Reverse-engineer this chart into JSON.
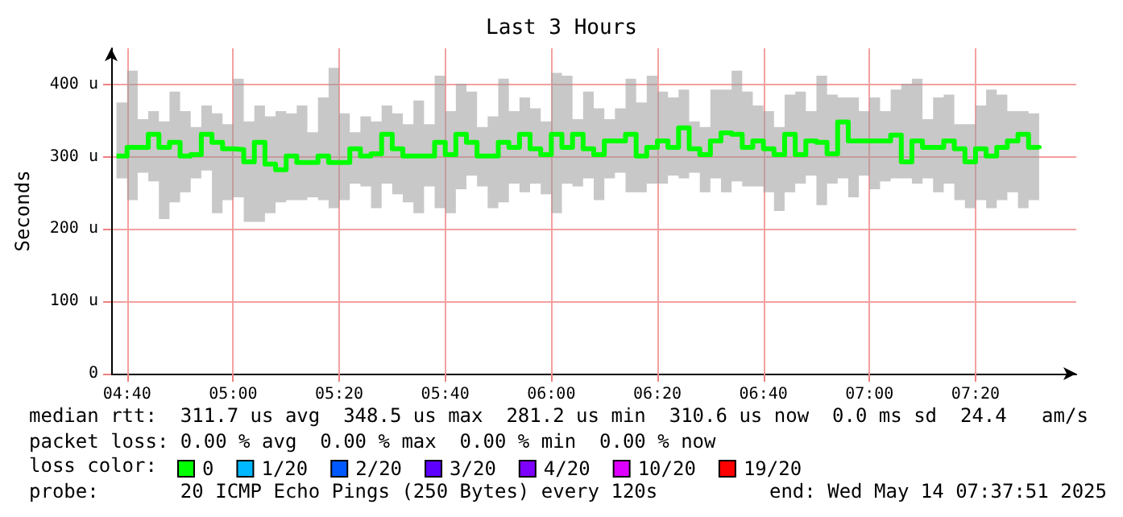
{
  "chart_data": {
    "type": "step",
    "title": "Last 3 Hours",
    "ylabel": "Seconds",
    "legend_title": "loss color:",
    "x": [
      "2025-05-14T04:38",
      "2025-05-14T04:40",
      "2025-05-14T04:42",
      "2025-05-14T04:44",
      "2025-05-14T04:46",
      "2025-05-14T04:48",
      "2025-05-14T04:50",
      "2025-05-14T04:52",
      "2025-05-14T04:54",
      "2025-05-14T04:56",
      "2025-05-14T04:58",
      "2025-05-14T05:00",
      "2025-05-14T05:02",
      "2025-05-14T05:04",
      "2025-05-14T05:06",
      "2025-05-14T05:08",
      "2025-05-14T05:10",
      "2025-05-14T05:12",
      "2025-05-14T05:14",
      "2025-05-14T05:16",
      "2025-05-14T05:18",
      "2025-05-14T05:20",
      "2025-05-14T05:22",
      "2025-05-14T05:24",
      "2025-05-14T05:26",
      "2025-05-14T05:28",
      "2025-05-14T05:30",
      "2025-05-14T05:32",
      "2025-05-14T05:34",
      "2025-05-14T05:36",
      "2025-05-14T05:38",
      "2025-05-14T05:40",
      "2025-05-14T05:42",
      "2025-05-14T05:44",
      "2025-05-14T05:46",
      "2025-05-14T05:48",
      "2025-05-14T05:50",
      "2025-05-14T05:52",
      "2025-05-14T05:54",
      "2025-05-14T05:56",
      "2025-05-14T05:58",
      "2025-05-14T06:00",
      "2025-05-14T06:02",
      "2025-05-14T06:04",
      "2025-05-14T06:06",
      "2025-05-14T06:08",
      "2025-05-14T06:10",
      "2025-05-14T06:12",
      "2025-05-14T06:14",
      "2025-05-14T06:16",
      "2025-05-14T06:18",
      "2025-05-14T06:20",
      "2025-05-14T06:22",
      "2025-05-14T06:24",
      "2025-05-14T06:26",
      "2025-05-14T06:28",
      "2025-05-14T06:30",
      "2025-05-14T06:32",
      "2025-05-14T06:34",
      "2025-05-14T06:36",
      "2025-05-14T06:38",
      "2025-05-14T06:40",
      "2025-05-14T06:42",
      "2025-05-14T06:44",
      "2025-05-14T06:46",
      "2025-05-14T06:48",
      "2025-05-14T06:50",
      "2025-05-14T06:52",
      "2025-05-14T06:54",
      "2025-05-14T06:56",
      "2025-05-14T06:58",
      "2025-05-14T07:00",
      "2025-05-14T07:02",
      "2025-05-14T07:04",
      "2025-05-14T07:06",
      "2025-05-14T07:08",
      "2025-05-14T07:10",
      "2025-05-14T07:12",
      "2025-05-14T07:14",
      "2025-05-14T07:16",
      "2025-05-14T07:18",
      "2025-05-14T07:20",
      "2025-05-14T07:22",
      "2025-05-14T07:24",
      "2025-05-14T07:26",
      "2025-05-14T07:28",
      "2025-05-14T07:30",
      "2025-05-14T07:32"
    ],
    "series": [
      {
        "name": "0",
        "color": "#00ff00",
        "values": [
          301,
          313,
          313,
          331,
          313,
          320,
          301,
          303,
          331,
          320,
          311,
          310,
          293,
          320,
          290,
          282,
          301,
          292,
          292,
          301,
          292,
          292,
          311,
          301,
          304,
          331,
          311,
          301,
          301,
          301,
          320,
          303,
          331,
          320,
          301,
          301,
          320,
          313,
          331,
          311,
          303,
          331,
          313,
          331,
          311,
          303,
          322,
          322,
          331,
          301,
          313,
          322,
          313,
          340,
          311,
          303,
          322,
          333,
          331,
          313,
          322,
          311,
          303,
          331,
          303,
          322,
          320,
          304,
          348,
          322,
          322,
          322,
          322,
          330,
          293,
          322,
          313,
          313,
          322,
          311,
          293,
          311,
          301,
          313,
          322,
          331,
          313,
          311
        ],
        "upper": [
          375,
          419,
          352,
          363,
          349,
          390,
          363,
          341,
          371,
          360,
          345,
          408,
          349,
          371,
          356,
          363,
          360,
          371,
          334,
          382,
          423,
          360,
          334,
          356,
          349,
          371,
          360,
          345,
          378,
          345,
          412,
          363,
          401,
          390,
          341,
          356,
          408,
          363,
          382,
          367,
          349,
          416,
          412,
          352,
          390,
          367,
          352,
          367,
          408,
          375,
          412,
          390,
          382,
          393,
          349,
          341,
          393,
          393,
          419,
          390,
          371,
          363,
          341,
          386,
          390,
          363,
          412,
          386,
          382,
          382,
          363,
          382,
          363,
          393,
          401,
          408,
          352,
          382,
          386,
          345,
          345,
          371,
          393,
          386,
          363,
          363,
          360,
          363
        ],
        "lower": [
          270,
          240,
          278,
          266,
          214,
          237,
          251,
          270,
          281,
          222,
          240,
          244,
          210,
          210,
          222,
          237,
          240,
          240,
          244,
          240,
          229,
          240,
          263,
          259,
          229,
          263,
          248,
          237,
          222,
          259,
          229,
          222,
          255,
          274,
          259,
          229,
          237,
          263,
          251,
          263,
          248,
          222,
          263,
          259,
          270,
          240,
          270,
          278,
          251,
          251,
          263,
          263,
          274,
          270,
          278,
          251,
          270,
          251,
          266,
          259,
          259,
          251,
          225,
          251,
          263,
          274,
          233,
          263,
          270,
          244,
          274,
          255,
          266,
          270,
          270,
          263,
          270,
          251,
          263,
          240,
          229,
          240,
          229,
          240,
          251,
          229,
          240,
          266
        ]
      },
      {
        "name": "1/20",
        "color": "#00b8ff",
        "values": [
          null,
          null,
          null,
          null,
          null,
          null,
          null,
          null,
          null,
          null,
          null,
          null,
          null,
          null,
          null,
          null,
          null,
          null,
          null,
          null,
          null,
          null,
          null,
          null,
          null,
          null,
          null,
          null,
          null,
          null,
          null,
          null,
          null,
          null,
          null,
          null,
          null,
          null,
          null,
          null,
          null,
          null,
          null,
          null,
          null,
          null,
          null,
          null,
          null,
          null,
          null,
          null,
          null,
          null,
          null,
          null,
          null,
          null,
          null,
          null,
          null,
          null,
          null,
          null,
          null,
          null,
          null,
          null,
          null,
          null,
          null,
          null,
          null,
          null,
          null,
          null,
          null,
          null,
          null,
          null,
          null,
          null,
          null,
          null,
          null,
          null,
          null,
          null
        ]
      },
      {
        "name": "2/20",
        "color": "#0059ff",
        "values": [
          null,
          null,
          null,
          null,
          null,
          null,
          null,
          null,
          null,
          null,
          null,
          null,
          null,
          null,
          null,
          null,
          null,
          null,
          null,
          null,
          null,
          null,
          null,
          null,
          null,
          null,
          null,
          null,
          null,
          null,
          null,
          null,
          null,
          null,
          null,
          null,
          null,
          null,
          null,
          null,
          null,
          null,
          null,
          null,
          null,
          null,
          null,
          null,
          null,
          null,
          null,
          null,
          null,
          null,
          null,
          null,
          null,
          null,
          null,
          null,
          null,
          null,
          null,
          null,
          null,
          null,
          null,
          null,
          null,
          null,
          null,
          null,
          null,
          null,
          null,
          null,
          null,
          null,
          null,
          null,
          null,
          null,
          null,
          null,
          null,
          null,
          null,
          null
        ]
      },
      {
        "name": "3/20",
        "color": "#5e00ff",
        "values": [
          null,
          null,
          null,
          null,
          null,
          null,
          null,
          null,
          null,
          null,
          null,
          null,
          null,
          null,
          null,
          null,
          null,
          null,
          null,
          null,
          null,
          null,
          null,
          null,
          null,
          null,
          null,
          null,
          null,
          null,
          null,
          null,
          null,
          null,
          null,
          null,
          null,
          null,
          null,
          null,
          null,
          null,
          null,
          null,
          null,
          null,
          null,
          null,
          null,
          null,
          null,
          null,
          null,
          null,
          null,
          null,
          null,
          null,
          null,
          null,
          null,
          null,
          null,
          null,
          null,
          null,
          null,
          null,
          null,
          null,
          null,
          null,
          null,
          null,
          null,
          null,
          null,
          null,
          null,
          null,
          null,
          null,
          null,
          null,
          null,
          null,
          null,
          null
        ]
      },
      {
        "name": "4/20",
        "color": "#7e00ff",
        "values": [
          null,
          null,
          null,
          null,
          null,
          null,
          null,
          null,
          null,
          null,
          null,
          null,
          null,
          null,
          null,
          null,
          null,
          null,
          null,
          null,
          null,
          null,
          null,
          null,
          null,
          null,
          null,
          null,
          null,
          null,
          null,
          null,
          null,
          null,
          null,
          null,
          null,
          null,
          null,
          null,
          null,
          null,
          null,
          null,
          null,
          null,
          null,
          null,
          null,
          null,
          null,
          null,
          null,
          null,
          null,
          null,
          null,
          null,
          null,
          null,
          null,
          null,
          null,
          null,
          null,
          null,
          null,
          null,
          null,
          null,
          null,
          null,
          null,
          null,
          null,
          null,
          null,
          null,
          null,
          null,
          null,
          null,
          null,
          null,
          null,
          null,
          null,
          null
        ]
      },
      {
        "name": "10/20",
        "color": "#dd00ff",
        "values": [
          null,
          null,
          null,
          null,
          null,
          null,
          null,
          null,
          null,
          null,
          null,
          null,
          null,
          null,
          null,
          null,
          null,
          null,
          null,
          null,
          null,
          null,
          null,
          null,
          null,
          null,
          null,
          null,
          null,
          null,
          null,
          null,
          null,
          null,
          null,
          null,
          null,
          null,
          null,
          null,
          null,
          null,
          null,
          null,
          null,
          null,
          null,
          null,
          null,
          null,
          null,
          null,
          null,
          null,
          null,
          null,
          null,
          null,
          null,
          null,
          null,
          null,
          null,
          null,
          null,
          null,
          null,
          null,
          null,
          null,
          null,
          null,
          null,
          null,
          null,
          null,
          null,
          null,
          null,
          null,
          null,
          null,
          null,
          null,
          null,
          null,
          null,
          null
        ]
      },
      {
        "name": "19/20",
        "color": "#ff0000",
        "values": [
          null,
          null,
          null,
          null,
          null,
          null,
          null,
          null,
          null,
          null,
          null,
          null,
          null,
          null,
          null,
          null,
          null,
          null,
          null,
          null,
          null,
          null,
          null,
          null,
          null,
          null,
          null,
          null,
          null,
          null,
          null,
          null,
          null,
          null,
          null,
          null,
          null,
          null,
          null,
          null,
          null,
          null,
          null,
          null,
          null,
          null,
          null,
          null,
          null,
          null,
          null,
          null,
          null,
          null,
          null,
          null,
          null,
          null,
          null,
          null,
          null,
          null,
          null,
          null,
          null,
          null,
          null,
          null,
          null,
          null,
          null,
          null,
          null,
          null,
          null,
          null,
          null,
          null,
          null,
          null,
          null,
          null,
          null,
          null,
          null,
          null,
          null,
          null
        ]
      }
    ],
    "xlim": [
      "2025-05-14T04:37",
      "2025-05-14T07:39"
    ],
    "xticks": [
      {
        "value": "2025-05-14T04:40",
        "label": "04:40"
      },
      {
        "value": "2025-05-14T05:00",
        "label": "05:00"
      },
      {
        "value": "2025-05-14T05:20",
        "label": "05:20"
      },
      {
        "value": "2025-05-14T05:40",
        "label": "05:40"
      },
      {
        "value": "2025-05-14T06:00",
        "label": "06:00"
      },
      {
        "value": "2025-05-14T06:20",
        "label": "06:20"
      },
      {
        "value": "2025-05-14T06:40",
        "label": "06:40"
      },
      {
        "value": "2025-05-14T07:00",
        "label": "07:00"
      },
      {
        "value": "2025-05-14T07:20",
        "label": "07:20"
      }
    ],
    "ylim": [
      0,
      450
    ],
    "yticks": [
      0,
      {
        "value": 100,
        "label": "100 u"
      },
      {
        "value": 200,
        "label": "200 u"
      },
      {
        "value": 300,
        "label": "300 u"
      },
      {
        "value": 400,
        "label": "400 u"
      }
    ],
    "grid": true,
    "legend": "bottom left",
    "marker": "none",
    "line_style": "solid",
    "annotations": [
      "median rtt:  311.7 us avg  348.5 us max  281.2 us min  310.6 us now  0.0 ms sd  24.4   am/s",
      "packet loss: 0.00 % avg  0.00 % max  0.00 % min  0.00 % now",
      "probe:       20 ICMP Echo Pings (250 Bytes) every 120s",
      "end: Wed May 14 07:37:51 2025"
    ]
  }
}
